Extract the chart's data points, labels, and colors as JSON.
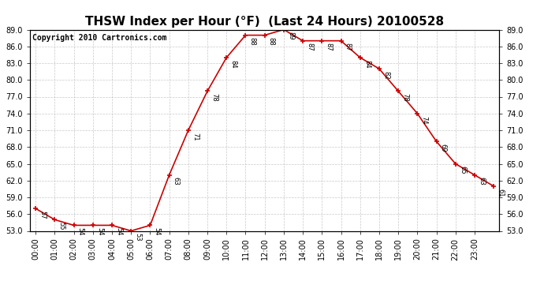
{
  "title": "THSW Index per Hour (°F)  (Last 24 Hours) 20100528",
  "copyright": "Copyright 2010 Cartronics.com",
  "hours": [
    "00:00",
    "01:00",
    "02:00",
    "03:00",
    "04:00",
    "05:00",
    "06:00",
    "07:00",
    "08:00",
    "09:00",
    "10:00",
    "11:00",
    "12:00",
    "13:00",
    "14:00",
    "15:00",
    "16:00",
    "17:00",
    "18:00",
    "19:00",
    "20:00",
    "21:00",
    "22:00",
    "23:00"
  ],
  "values": [
    57,
    55,
    54,
    54,
    54,
    53,
    54,
    63,
    71,
    78,
    84,
    88,
    88,
    89,
    87,
    87,
    87,
    84,
    82,
    78,
    74,
    69,
    65,
    63,
    61
  ],
  "ylim_min": 53.0,
  "ylim_max": 89.0,
  "yticks": [
    53.0,
    56.0,
    59.0,
    62.0,
    65.0,
    68.0,
    71.0,
    74.0,
    77.0,
    80.0,
    83.0,
    86.0,
    89.0
  ],
  "line_color": "#cc0000",
  "bg_color": "#ffffff",
  "grid_color": "#bbbbbb",
  "title_fontsize": 11,
  "copyright_fontsize": 7,
  "annot_fontsize": 6,
  "axis_tick_fontsize": 7
}
